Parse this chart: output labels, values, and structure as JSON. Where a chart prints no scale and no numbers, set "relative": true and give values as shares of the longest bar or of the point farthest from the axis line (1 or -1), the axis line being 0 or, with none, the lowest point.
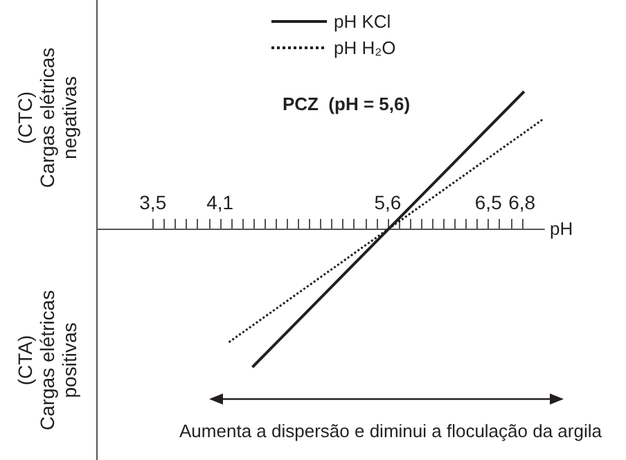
{
  "chart_data": {
    "type": "line",
    "relative": true,
    "legend": "top",
    "xlabel": "pH",
    "xlim": [
      3.0,
      7.0
    ],
    "xticks": [
      {
        "value": 3.5,
        "label": "3,5"
      },
      {
        "value": 3.6,
        "label": null
      },
      {
        "value": 3.7,
        "label": null
      },
      {
        "value": 3.8,
        "label": null
      },
      {
        "value": 3.9,
        "label": null
      },
      {
        "value": 4.0,
        "label": null
      },
      {
        "value": 4.1,
        "label": "4,1"
      },
      {
        "value": 4.2,
        "label": null
      },
      {
        "value": 4.3,
        "label": null
      },
      {
        "value": 4.4,
        "label": null
      },
      {
        "value": 4.5,
        "label": null
      },
      {
        "value": 4.6,
        "label": null
      },
      {
        "value": 4.7,
        "label": null
      },
      {
        "value": 4.8,
        "label": null
      },
      {
        "value": 4.9,
        "label": null
      },
      {
        "value": 5.0,
        "label": null
      },
      {
        "value": 5.1,
        "label": null
      },
      {
        "value": 5.2,
        "label": null
      },
      {
        "value": 5.3,
        "label": null
      },
      {
        "value": 5.4,
        "label": null
      },
      {
        "value": 5.5,
        "label": null
      },
      {
        "value": 5.6,
        "label": "5,6"
      },
      {
        "value": 5.7,
        "label": null
      },
      {
        "value": 5.8,
        "label": null
      },
      {
        "value": 5.9,
        "label": null
      },
      {
        "value": 6.0,
        "label": null
      },
      {
        "value": 6.1,
        "label": null
      },
      {
        "value": 6.2,
        "label": null
      },
      {
        "value": 6.3,
        "label": null
      },
      {
        "value": 6.4,
        "label": null
      },
      {
        "value": 6.5,
        "label": "6,5"
      },
      {
        "value": 6.6,
        "label": null
      },
      {
        "value": 6.7,
        "label": null
      },
      {
        "value": 6.8,
        "label": "6,8"
      }
    ],
    "series": [
      {
        "name": "pH KCl",
        "color": "#231f20",
        "line_style": "solid",
        "x": [
          4.39,
          6.82
        ],
        "values": [
          -1.0,
          0.99
        ]
      },
      {
        "name": "pH H₂O",
        "color": "#231f20",
        "line_style": "dotted",
        "x": [
          4.18,
          6.99
        ],
        "values": [
          -0.82,
          0.79
        ]
      }
    ],
    "annotations": [
      "(CTC)\nCargas elétricas\nnegativas",
      "(CTA)\nCargas elétricas\npositivas",
      "PCZ  (pH = 5,6)",
      "Aumenta a dispersão e diminui a floculação da argila"
    ]
  }
}
